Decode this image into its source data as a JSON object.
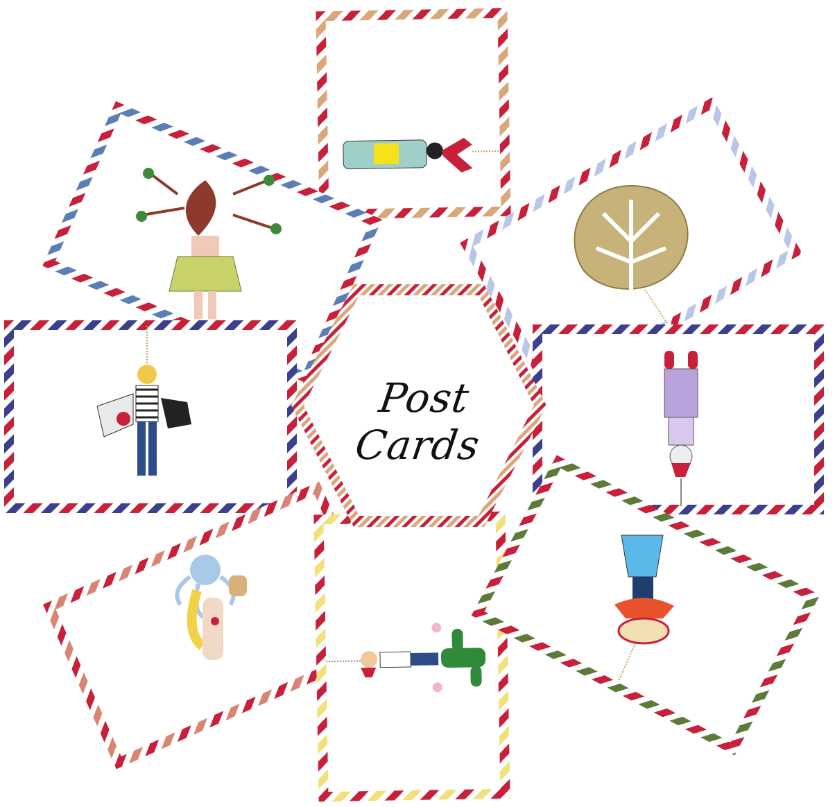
{
  "title": "Post Cards",
  "colors": {
    "red": "#c8203a",
    "blue": "#5b7fb5",
    "tan": "#d9a77a",
    "lavender": "#b9c6e8",
    "navy": "#3b3f8c",
    "green": "#5d7a3a",
    "salmon": "#d98574",
    "yellow": "#f2e079"
  },
  "cards": [
    {
      "id": "card-hula-dancer",
      "icon": "hula-dancer-pendant-icon"
    },
    {
      "id": "card-top-figure",
      "icon": "kimono-figure-pendant-icon"
    },
    {
      "id": "card-monstera-leaf",
      "icon": "monstera-leaf-pendant-icon"
    },
    {
      "id": "card-sailor-cats",
      "icon": "sailor-with-cats-pendant-icon"
    },
    {
      "id": "card-upside-down-girl",
      "icon": "lavender-girl-pendant-icon"
    },
    {
      "id": "card-octopus-swimmer",
      "icon": "octopus-swimmer-pendant-icon"
    },
    {
      "id": "card-cactus-cowboy",
      "icon": "cactus-cowboy-pendant-icon"
    },
    {
      "id": "card-mariachi",
      "icon": "mariachi-pendant-icon"
    }
  ]
}
